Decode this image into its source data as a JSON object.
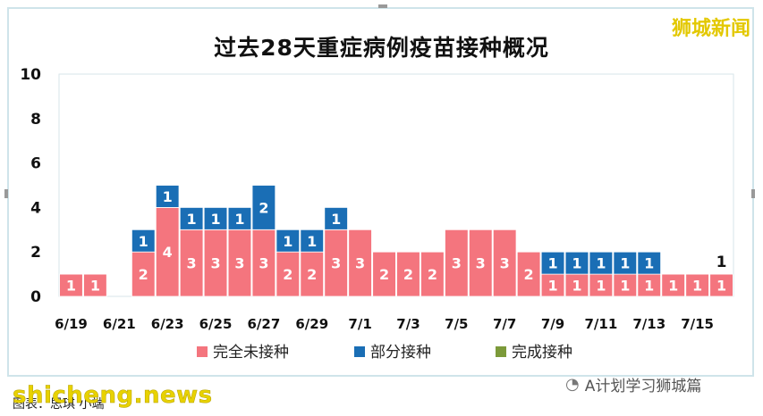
{
  "chart_data": {
    "type": "bar",
    "stacked": true,
    "title": "过去28天重症病例疫苗接种概况",
    "xlabel": "",
    "ylabel": "",
    "ylim": [
      0,
      10
    ],
    "yticks": [
      0,
      2,
      4,
      6,
      8,
      10
    ],
    "grid": false,
    "legend_position": "bottom",
    "categories": [
      "6/19",
      "6/20",
      "6/21",
      "6/22",
      "6/23",
      "6/24",
      "6/25",
      "6/26",
      "6/27",
      "6/28",
      "6/29",
      "6/30",
      "7/1",
      "7/2",
      "7/3",
      "7/4",
      "7/5",
      "7/6",
      "7/7",
      "7/8",
      "7/9",
      "7/10",
      "7/11",
      "7/12",
      "7/13",
      "7/14",
      "7/15",
      "7/16"
    ],
    "tick_labels": [
      "6/19",
      "6/21",
      "6/23",
      "6/25",
      "6/27",
      "6/29",
      "7/1",
      "7/3",
      "7/5",
      "7/7",
      "7/9",
      "7/11",
      "7/13",
      "7/15"
    ],
    "series": [
      {
        "name": "完全未接种",
        "color": "#f4757e",
        "values": [
          1,
          1,
          0,
          2,
          4,
          3,
          3,
          3,
          3,
          2,
          2,
          3,
          3,
          2,
          2,
          2,
          3,
          3,
          3,
          2,
          1,
          1,
          1,
          1,
          1,
          1,
          1,
          1
        ]
      },
      {
        "name": "部分接种",
        "color": "#1a6eb5",
        "values": [
          0,
          0,
          0,
          1,
          1,
          1,
          1,
          1,
          2,
          1,
          1,
          1,
          0,
          0,
          0,
          0,
          0,
          0,
          0,
          0,
          1,
          1,
          1,
          1,
          1,
          0,
          0,
          0
        ]
      },
      {
        "name": "完成接种",
        "color": "#7c9a3a",
        "values": [
          0,
          0,
          0,
          0,
          0,
          0,
          0,
          0,
          0,
          0,
          0,
          0,
          0,
          0,
          0,
          0,
          0,
          0,
          0,
          0,
          0,
          0,
          0,
          0,
          0,
          0,
          0,
          0
        ]
      }
    ],
    "annotations": [
      {
        "category": "7/16",
        "text": "1"
      }
    ]
  },
  "brand": "狮城新闻",
  "wechat_account": "A计划学习狮城篇",
  "watermark": "shicheng.news",
  "caption": "图表：思琪 小端"
}
